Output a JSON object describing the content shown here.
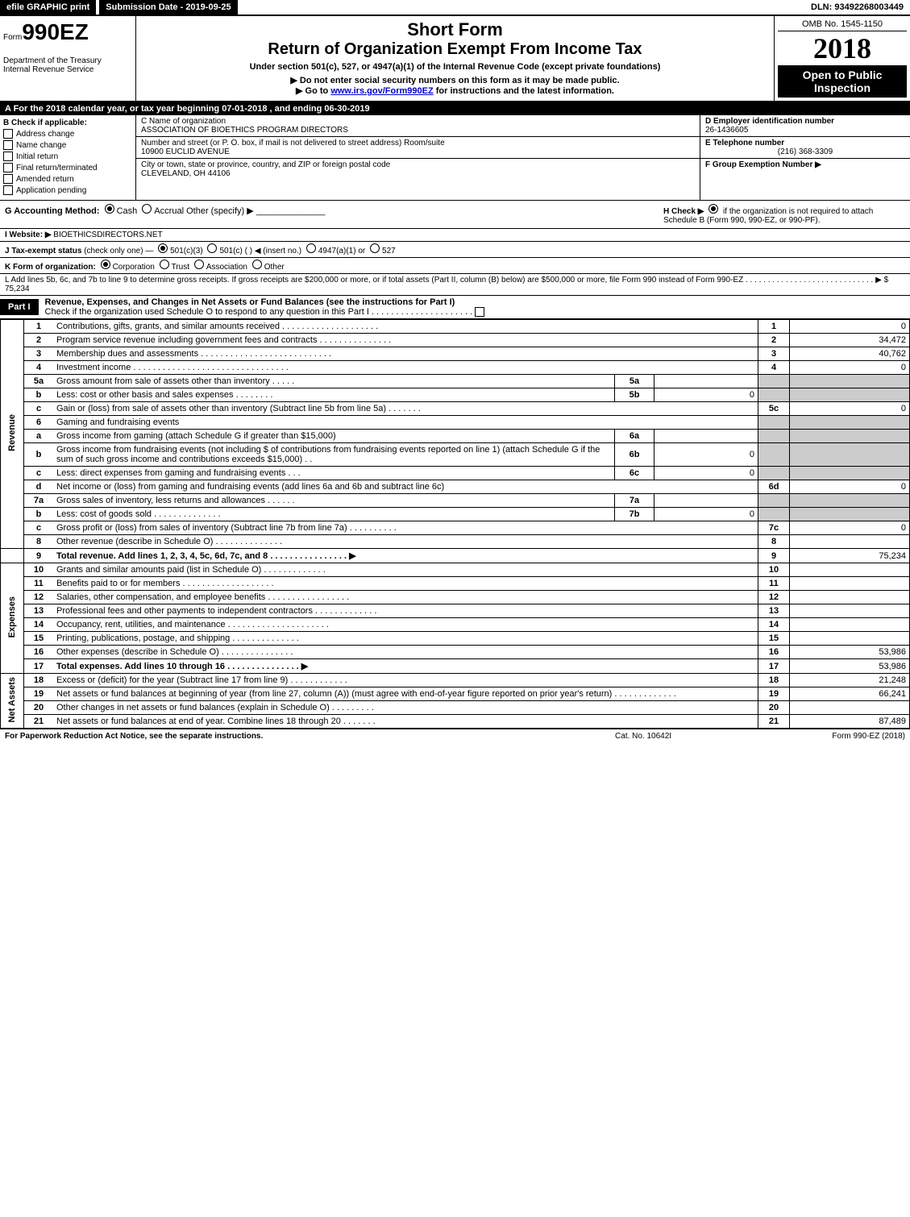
{
  "top": {
    "efile": "efile GRAPHIC print",
    "submission": "Submission Date - 2019-09-25",
    "dln": "DLN: 93492268003449"
  },
  "header": {
    "form_prefix": "Form",
    "form_number": "990EZ",
    "dept1": "Department of the Treasury",
    "dept2": "Internal Revenue Service",
    "short_form": "Short Form",
    "title": "Return of Organization Exempt From Income Tax",
    "subtitle": "Under section 501(c), 527, or 4947(a)(1) of the Internal Revenue Code (except private foundations)",
    "instruction1": "▶ Do not enter social security numbers on this form as it may be made public.",
    "instruction2_pre": "▶ Go to ",
    "instruction2_link": "www.irs.gov/Form990EZ",
    "instruction2_post": " for instructions and the latest information.",
    "omb": "OMB No. 1545-1150",
    "year": "2018",
    "open": "Open to Public Inspection"
  },
  "section_a": {
    "text_pre": "A  For the 2018 calendar year, or tax year beginning ",
    "begin": "07-01-2018",
    "mid": " , and ending ",
    "end": "06-30-2019"
  },
  "col_b": {
    "label": "B  Check if applicable:",
    "items": [
      "Address change",
      "Name change",
      "Initial return",
      "Final return/terminated",
      "Amended return",
      "Application pending"
    ]
  },
  "col_c": {
    "name_label": "C Name of organization",
    "name": "ASSOCIATION OF BIOETHICS PROGRAM DIRECTORS",
    "addr_label": "Number and street (or P. O. box, if mail is not delivered to street address)    Room/suite",
    "addr": "10900 EUCLID AVENUE",
    "city_label": "City or town, state or province, country, and ZIP or foreign postal code",
    "city": "CLEVELAND, OH  44106"
  },
  "col_d": {
    "ein_label": "D Employer identification number",
    "ein": "26-1436605",
    "phone_label": "E Telephone number",
    "phone": "(216) 368-3309",
    "group_label": "F Group Exemption Number  ▶"
  },
  "row_g": {
    "label": "G Accounting Method:",
    "cash": "Cash",
    "accrual": "Accrual",
    "other": "Other (specify) ▶",
    "h_label": "H  Check ▶",
    "h_text": "if the organization is not required to attach Schedule B (Form 990, 990-EZ, or 990-PF)."
  },
  "row_i": {
    "label": "I Website: ▶",
    "value": "BIOETHICSDIRECTORS.NET"
  },
  "row_j": {
    "label": "J Tax-exempt status",
    "detail": "(check only one) — ",
    "opts": [
      "501(c)(3)",
      "501(c) (    ) ◀ (insert no.)",
      "4947(a)(1) or",
      "527"
    ]
  },
  "row_k": {
    "label": "K Form of organization:",
    "opts": [
      "Corporation",
      "Trust",
      "Association",
      "Other"
    ]
  },
  "row_l": {
    "text": "L Add lines 5b, 6c, and 7b to line 9 to determine gross receipts. If gross receipts are $200,000 or more, or if total assets (Part II, column (B) below) are $500,000 or more, file Form 990 instead of Form 990-EZ  . . . . . . . . . . . . . . . . . . . . . . . . . . . . . ▶ $ ",
    "value": "75,234"
  },
  "part1": {
    "label": "Part I",
    "title": "Revenue, Expenses, and Changes in Net Assets or Fund Balances (see the instructions for Part I)",
    "check": "Check if the organization used Schedule O to respond to any question in this Part I . . . . . . . . . . . . . . . . . . . . ."
  },
  "sections": {
    "revenue": "Revenue",
    "expenses": "Expenses",
    "netassets": "Net Assets"
  },
  "lines": [
    {
      "n": "1",
      "desc": "Contributions, gifts, grants, and similar amounts received . . . . . . . . . . . . . . . . . . . .",
      "num": "1",
      "val": "0"
    },
    {
      "n": "2",
      "desc": "Program service revenue including government fees and contracts . . . . . . . . . . . . . . .",
      "num": "2",
      "val": "34,472"
    },
    {
      "n": "3",
      "desc": "Membership dues and assessments . . . . . . . . . . . . . . . . . . . . . . . . . . .",
      "num": "3",
      "val": "40,762"
    },
    {
      "n": "4",
      "desc": "Investment income . . . . . . . . . . . . . . . . . . . . . . . . . . . . . . . .",
      "num": "4",
      "val": "0"
    },
    {
      "n": "5a",
      "desc": "Gross amount from sale of assets other than inventory . . . . .",
      "sub": "5a",
      "subval": ""
    },
    {
      "n": "b",
      "desc": "Less: cost or other basis and sales expenses . . . . . . . .",
      "sub": "5b",
      "subval": "0"
    },
    {
      "n": "c",
      "desc": "Gain or (loss) from sale of assets other than inventory (Subtract line 5b from line 5a) . . . . . . .",
      "num": "5c",
      "val": "0"
    },
    {
      "n": "6",
      "desc": "Gaming and fundraising events"
    },
    {
      "n": "a",
      "desc": "Gross income from gaming (attach Schedule G if greater than $15,000)",
      "sub": "6a",
      "subval": ""
    },
    {
      "n": "b",
      "desc": "Gross income from fundraising events (not including $                    of contributions from fundraising events reported on line 1) (attach Schedule G if the sum of such gross income and contributions exceeds $15,000)   . .",
      "sub": "6b",
      "subval": "0"
    },
    {
      "n": "c",
      "desc": "Less: direct expenses from gaming and fundraising events      . . .",
      "sub": "6c",
      "subval": "0"
    },
    {
      "n": "d",
      "desc": "Net income or (loss) from gaming and fundraising events (add lines 6a and 6b and subtract line 6c)",
      "num": "6d",
      "val": "0"
    },
    {
      "n": "7a",
      "desc": "Gross sales of inventory, less returns and allowances . . . . . .",
      "sub": "7a",
      "subval": ""
    },
    {
      "n": "b",
      "desc": "Less: cost of goods sold          . . . . . . . . . . . . . .",
      "sub": "7b",
      "subval": "0"
    },
    {
      "n": "c",
      "desc": "Gross profit or (loss) from sales of inventory (Subtract line 7b from line 7a) . . . . . . . . . .",
      "num": "7c",
      "val": "0"
    },
    {
      "n": "8",
      "desc": "Other revenue (describe in Schedule O)                          . . . . . . . . . . . . . .",
      "num": "8",
      "val": ""
    },
    {
      "n": "9",
      "desc": "Total revenue. Add lines 1, 2, 3, 4, 5c, 6d, 7c, and 8  . . . . . . . . . . . . . . . .  ▶",
      "num": "9",
      "val": "75,234",
      "bold": true
    },
    {
      "n": "10",
      "desc": "Grants and similar amounts paid (list in Schedule O)           . . . . . . . . . . . . .",
      "num": "10",
      "val": ""
    },
    {
      "n": "11",
      "desc": "Benefits paid to or for members              . . . . . . . . . . . . . . . . . . .",
      "num": "11",
      "val": ""
    },
    {
      "n": "12",
      "desc": "Salaries, other compensation, and employee benefits . . . . . . . . . . . . . . . . .",
      "num": "12",
      "val": ""
    },
    {
      "n": "13",
      "desc": "Professional fees and other payments to independent contractors . . . . . . . . . . . . .",
      "num": "13",
      "val": ""
    },
    {
      "n": "14",
      "desc": "Occupancy, rent, utilities, and maintenance . . . . . . . . . . . . . . . . . . . . .",
      "num": "14",
      "val": ""
    },
    {
      "n": "15",
      "desc": "Printing, publications, postage, and shipping              . . . . . . . . . . . . . .",
      "num": "15",
      "val": ""
    },
    {
      "n": "16",
      "desc": "Other expenses (describe in Schedule O)                . . . . . . . . . . . . . . .",
      "num": "16",
      "val": "53,986"
    },
    {
      "n": "17",
      "desc": "Total expenses. Add lines 10 through 16           . . . . . . . . . . . . . . .  ▶",
      "num": "17",
      "val": "53,986",
      "bold": true
    },
    {
      "n": "18",
      "desc": "Excess or (deficit) for the year (Subtract line 17 from line 9)        . . . . . . . . . . . .",
      "num": "18",
      "val": "21,248"
    },
    {
      "n": "19",
      "desc": "Net assets or fund balances at beginning of year (from line 27, column (A)) (must agree with end-of-year figure reported on prior year's return)                . . . . . . . . . . . . .",
      "num": "19",
      "val": "66,241"
    },
    {
      "n": "20",
      "desc": "Other changes in net assets or fund balances (explain in Schedule O)    . . . . . . . . .",
      "num": "20",
      "val": ""
    },
    {
      "n": "21",
      "desc": "Net assets or fund balances at end of year. Combine lines 18 through 20        . . . . . . .",
      "num": "21",
      "val": "87,489"
    }
  ],
  "footer": {
    "l": "For Paperwork Reduction Act Notice, see the separate instructions.",
    "c": "Cat. No. 10642I",
    "r": "Form 990-EZ (2018)"
  }
}
